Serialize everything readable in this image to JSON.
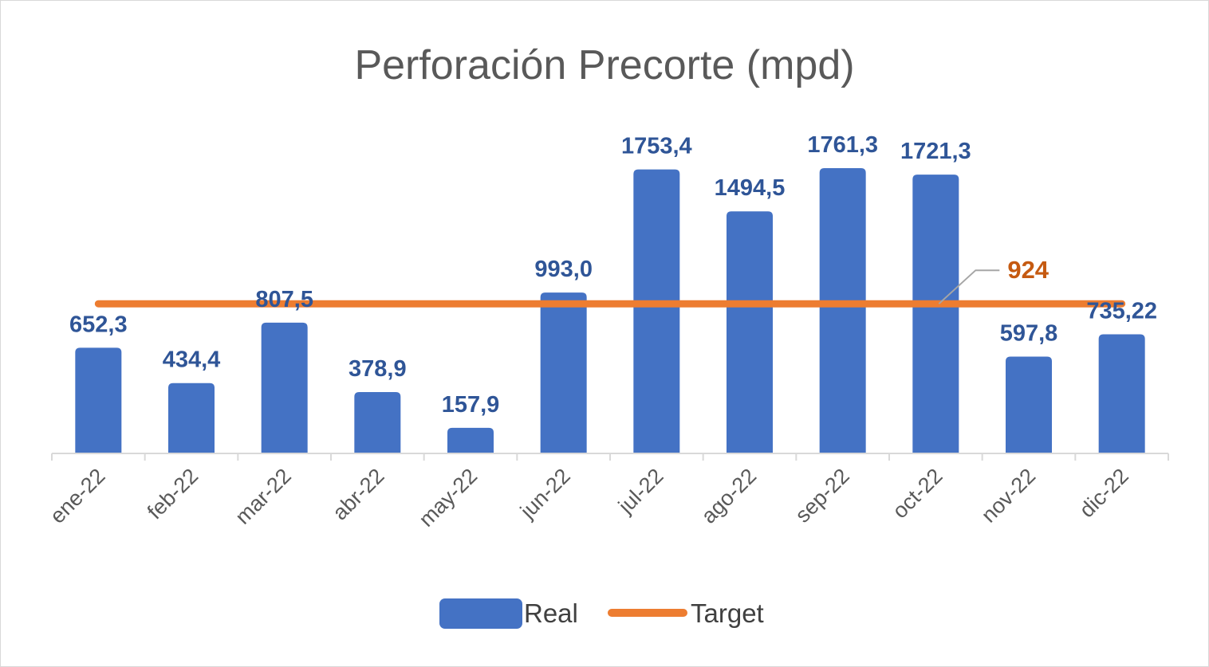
{
  "chart_data": {
    "type": "bar",
    "title": "Perforación Precorte (mpd)",
    "xlabel": "",
    "ylabel": "",
    "categories": [
      "ene-22",
      "feb-22",
      "mar-22",
      "abr-22",
      "may-22",
      "jun-22",
      "jul-22",
      "ago-22",
      "sep-22",
      "oct-22",
      "nov-22",
      "dic-22"
    ],
    "series": [
      {
        "name": "Real",
        "kind": "bar",
        "color": "#4472c4",
        "values": [
          652.3,
          434.4,
          807.5,
          378.9,
          157.9,
          993.0,
          1753.4,
          1494.5,
          1761.3,
          1721.3,
          597.8,
          735.22
        ],
        "labels": [
          "652,3",
          "434,4",
          "807,5",
          "378,9",
          "157,9",
          "993,0",
          "1753,4",
          "1494,5",
          "1761,3",
          "1721,3",
          "597,8",
          "735,22"
        ]
      },
      {
        "name": "Target",
        "kind": "line",
        "color": "#ed7d31",
        "value": 924,
        "label": "924",
        "label_color": "#c55a11"
      }
    ],
    "ylim": [
      0,
      1900
    ],
    "grid": false,
    "legend": "bottom"
  }
}
